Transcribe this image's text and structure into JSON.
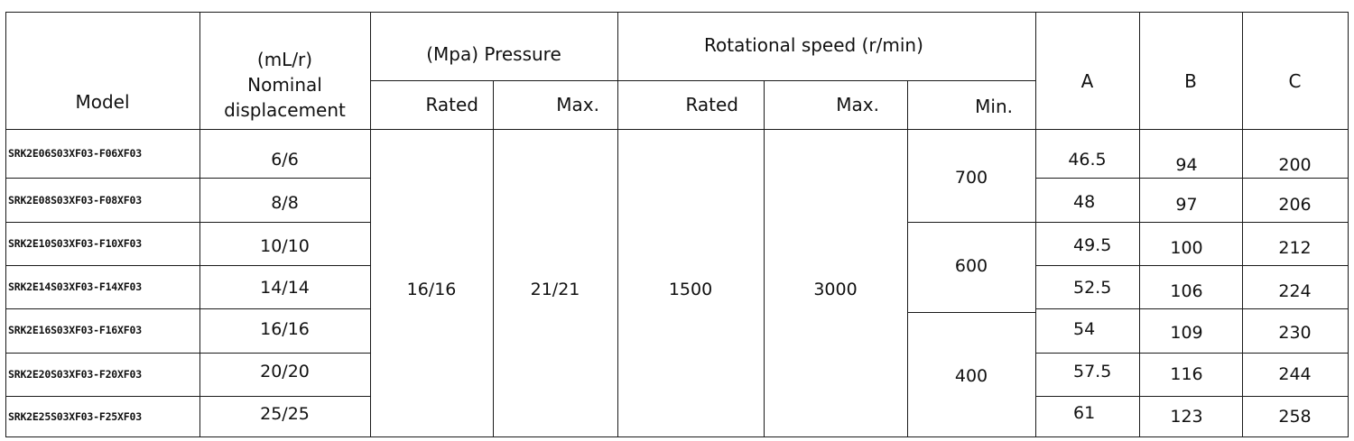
{
  "table": {
    "headers": {
      "model": "Model",
      "displacement_unit": "(mL/r)",
      "displacement_line1": "Nominal",
      "displacement_line2": "displacement",
      "pressure_group": "(Mpa)  Pressure",
      "speed_group": "Rotational speed (r/min)",
      "pressure_rated": "Rated",
      "pressure_max": "Max.",
      "speed_rated": "Rated",
      "speed_max": "Max.",
      "speed_min": "Min.",
      "a": "A",
      "b": "B",
      "c": "C"
    },
    "rows": [
      {
        "model": "SRK2E06S03XF03-F06XF03",
        "displacement": "6/6",
        "a": "46.5",
        "b": "94",
        "c": "200"
      },
      {
        "model": "SRK2E08S03XF03-F08XF03",
        "displacement": "8/8",
        "a": "48",
        "b": "97",
        "c": "206"
      },
      {
        "model": "SRK2E10S03XF03-F10XF03",
        "displacement": "10/10",
        "a": "49.5",
        "b": "100",
        "c": "212"
      },
      {
        "model": "SRK2E14S03XF03-F14XF03",
        "displacement": "14/14",
        "a": "52.5",
        "b": "106",
        "c": "224"
      },
      {
        "model": "SRK2E16S03XF03-F16XF03",
        "displacement": "16/16",
        "a": "54",
        "b": "109",
        "c": "230"
      },
      {
        "model": "SRK2E20S03XF03-F20XF03",
        "displacement": "20/20",
        "a": "57.5",
        "b": "116",
        "c": "244"
      },
      {
        "model": "SRK2E25S03XF03-F25XF03",
        "displacement": "25/25",
        "a": "61",
        "b": "123",
        "c": "258"
      }
    ],
    "shared": {
      "pressure_rated": "16/16",
      "pressure_max": "21/21",
      "speed_rated": "1500",
      "speed_max": "3000"
    },
    "speed_min_groups": [
      "700",
      "600",
      "400"
    ]
  }
}
